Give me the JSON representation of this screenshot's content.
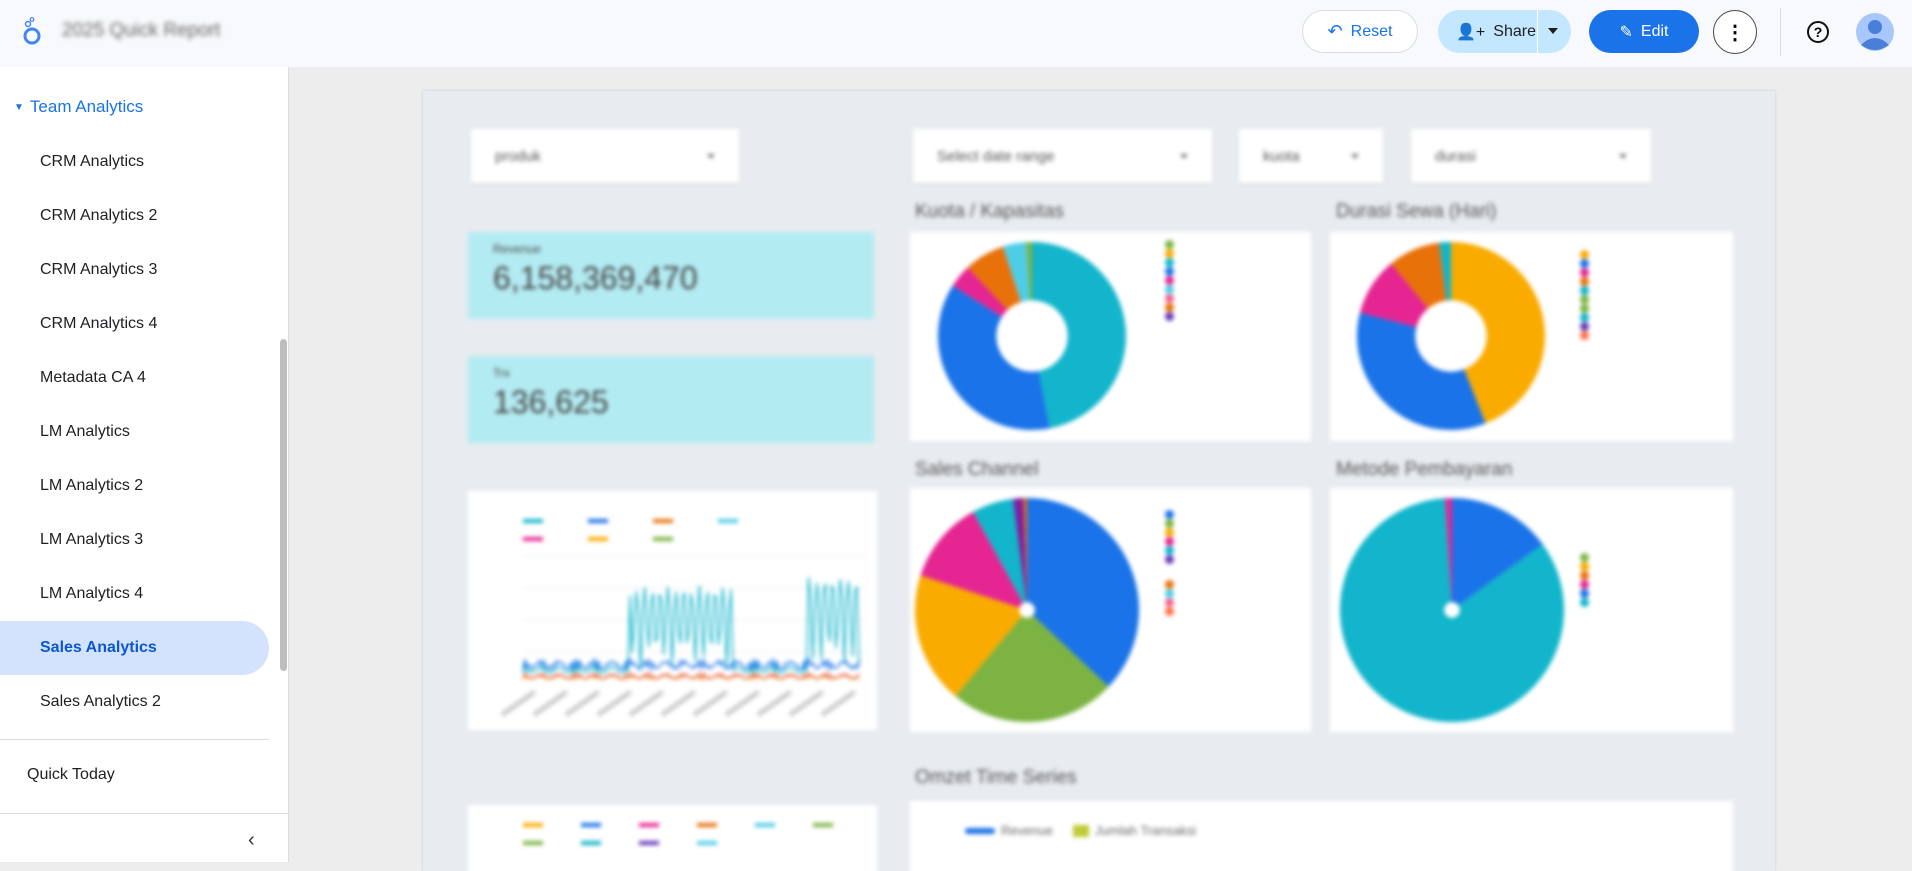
{
  "header": {
    "title": "2025 Quick Report",
    "reset": "Reset",
    "share": "Share",
    "edit": "Edit"
  },
  "sidebar": {
    "group": "Team Analytics",
    "items": [
      "CRM Analytics",
      "CRM Analytics 2",
      "CRM Analytics 3",
      "CRM Analytics 4",
      "Metadata CA 4",
      "LM Analytics",
      "LM Analytics 2",
      "LM Analytics 3",
      "LM Analytics 4",
      "Sales Analytics",
      "Sales Analytics 2"
    ],
    "active": "Sales Analytics",
    "quick": "Quick Today"
  },
  "filters": {
    "produk": "produk",
    "date": "Select date range",
    "kuota": "kuota",
    "durasi": "durasi"
  },
  "kpis": {
    "revenue_label": "Revenue",
    "revenue": "6,158,369,470",
    "trx_label": "Trx",
    "trx": "136,625"
  },
  "charts": {
    "kuota": {
      "title": "Kuota / Kapasitas",
      "slices": [
        {
          "color": "#12b5cb",
          "v": 47
        },
        {
          "color": "#1a73e8",
          "v": 37
        },
        {
          "color": "#e52592",
          "v": 4
        },
        {
          "color": "#e8710a",
          "v": 7
        },
        {
          "color": "#4ecde6",
          "v": 4
        },
        {
          "color": "#7cb342",
          "v": 1
        }
      ],
      "donut": true
    },
    "durasi": {
      "title": "Durasi Sewa (Hari)",
      "slices": [
        {
          "color": "#f9ab00",
          "v": 44
        },
        {
          "color": "#1a73e8",
          "v": 35
        },
        {
          "color": "#e52592",
          "v": 10
        },
        {
          "color": "#e8710a",
          "v": 9
        },
        {
          "color": "#12b5cb",
          "v": 2
        }
      ],
      "donut": true
    },
    "channel": {
      "title": "Sales Channel",
      "slices": [
        {
          "color": "#1a73e8",
          "v": 37
        },
        {
          "color": "#7cb342",
          "v": 24
        },
        {
          "color": "#f9ab00",
          "v": 19
        },
        {
          "color": "#e52592",
          "v": 12
        },
        {
          "color": "#12b5cb",
          "v": 6
        },
        {
          "color": "#7b1fa2",
          "v": 1.5
        },
        {
          "color": "#e8710a",
          "v": 0.5
        }
      ],
      "donut": false
    },
    "metode": {
      "title": "Metode Pembayaran",
      "slices": [
        {
          "color": "#1a73e8",
          "v": 15
        },
        {
          "color": "#12b5cb",
          "v": 84
        },
        {
          "color": "#e52592",
          "v": 1
        }
      ],
      "donut": false
    },
    "omzet": {
      "title": "Omzet Time Series",
      "legend": [
        "Revenue",
        "Jumlah Transaksi"
      ],
      "colors": [
        "#1a73e8",
        "#c0ca33"
      ]
    }
  }
}
